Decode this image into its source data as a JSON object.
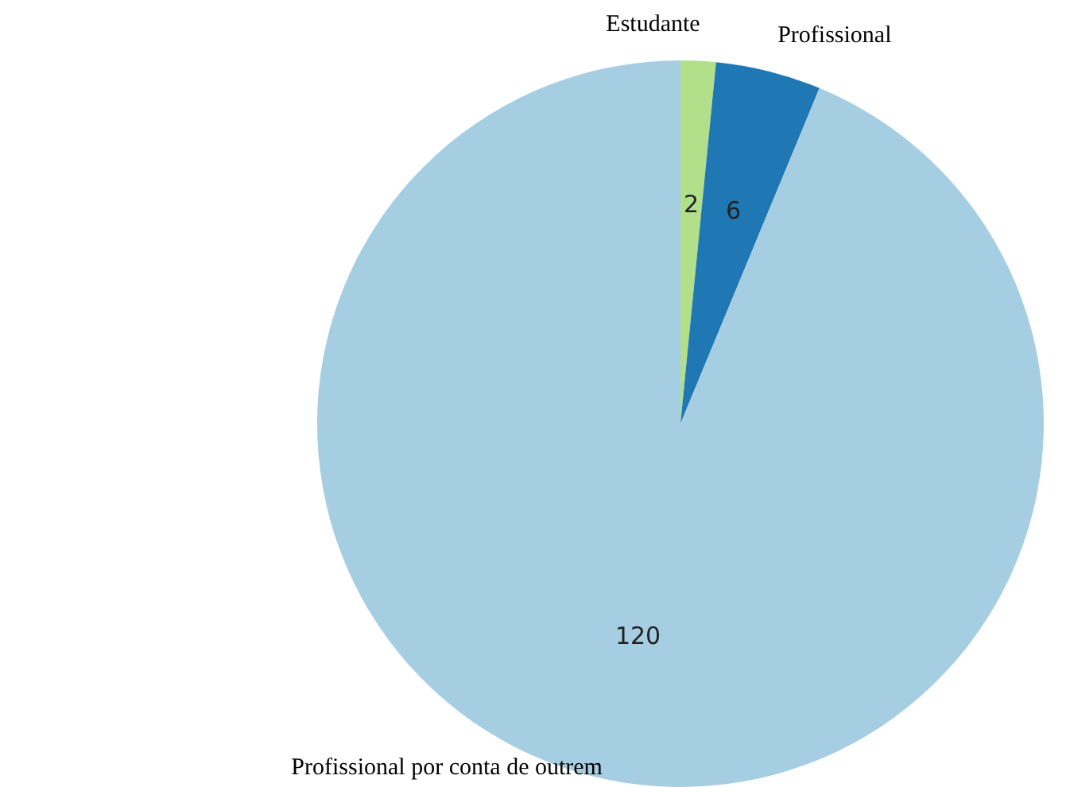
{
  "chart_data": {
    "type": "pie",
    "categories": [
      "Estudante",
      "Profissional",
      "Profissional por conta de outrem"
    ],
    "values": [
      2,
      6,
      120
    ],
    "colors": [
      "#b2df8a",
      "#1f78b4",
      "#a6cee3"
    ],
    "data_labels": true,
    "legend": false
  }
}
